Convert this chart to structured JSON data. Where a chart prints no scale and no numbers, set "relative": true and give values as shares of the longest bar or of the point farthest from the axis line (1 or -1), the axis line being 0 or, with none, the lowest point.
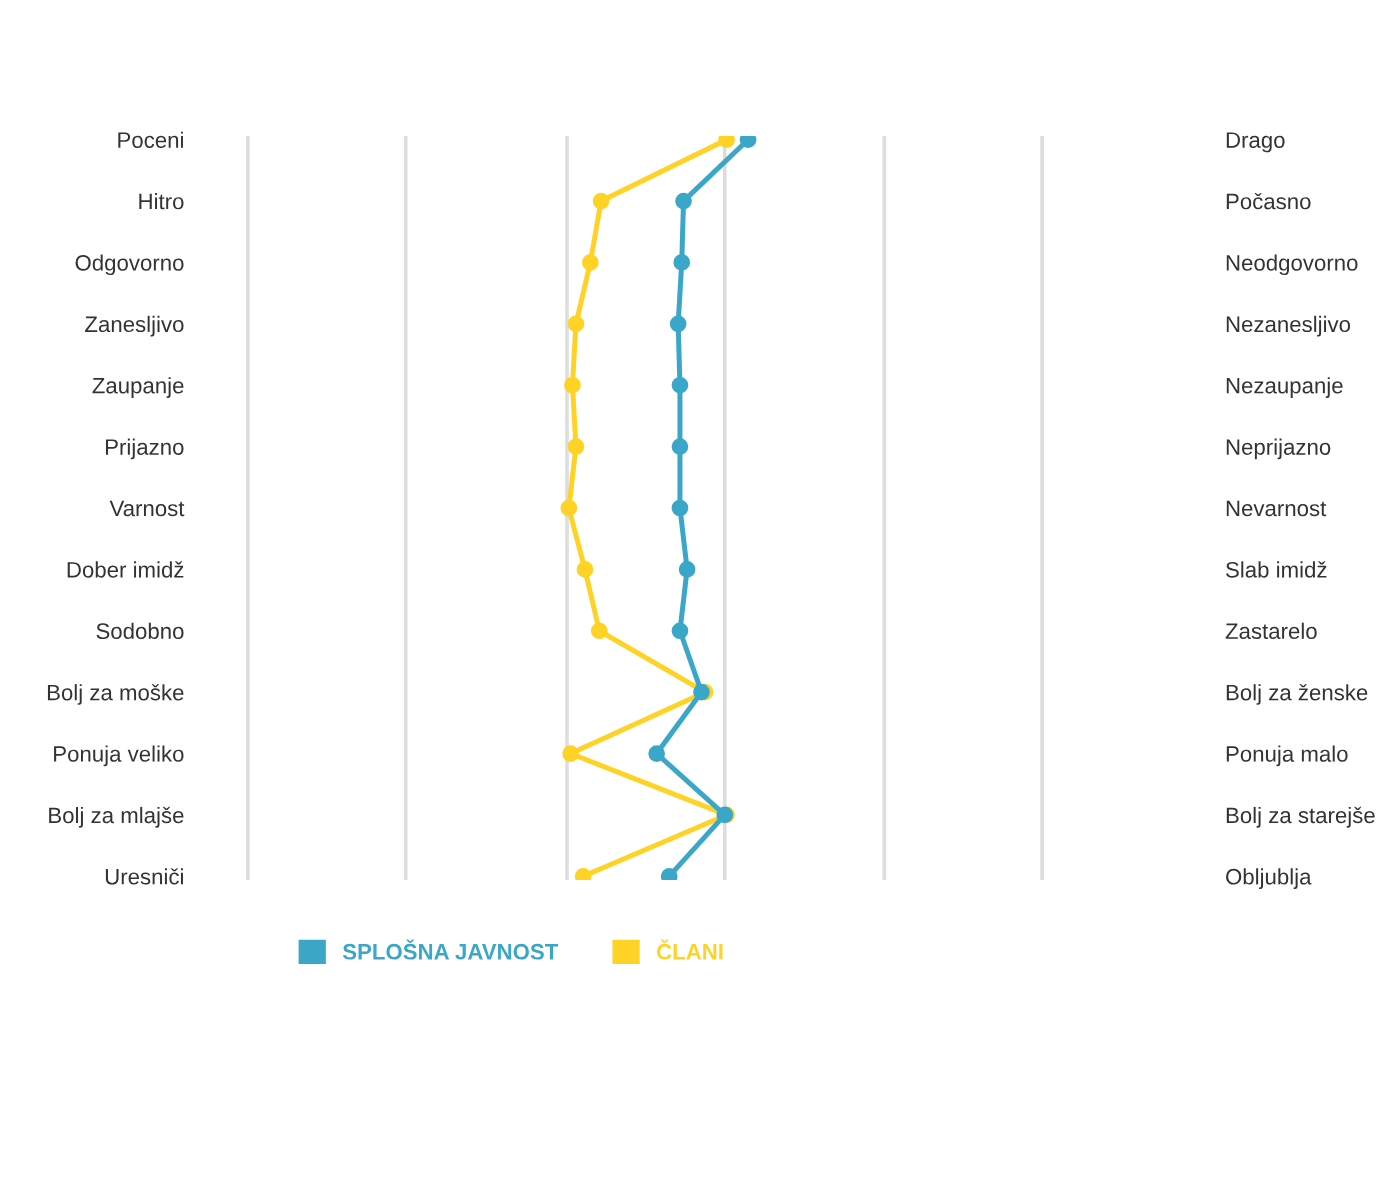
{
  "chart_data": {
    "type": "line",
    "relative": true,
    "orientation": "horizontal",
    "ref_lines": [
      {
        "axis": "x",
        "value": -1.79,
        "color": "#dddddd"
      },
      {
        "axis": "x",
        "value": -0.91,
        "color": "#dddddd"
      },
      {
        "axis": "x",
        "value": -0.01,
        "color": "#dddddd"
      },
      {
        "axis": "x",
        "value": 0.87,
        "color": "#dddddd"
      },
      {
        "axis": "x",
        "value": 1.76,
        "color": "#dddddd"
      },
      {
        "axis": "x",
        "value": 2.64,
        "color": "#dddddd"
      }
    ],
    "legend": "bottom",
    "marker": "circle",
    "line_style": "solid",
    "categories": [
      "Poceni",
      "Hitro",
      "Odgovorno",
      "Zanesljivo",
      "Zaupanje",
      "Prijazno",
      "Varnost",
      "Dober imidž",
      "Sodobno",
      "Bolj za moške",
      "Ponuja veliko",
      "Bolj za mlajše",
      "Uresniči"
    ],
    "y2_categories": [
      "Drago",
      "Počasno",
      "Neodgovorno",
      "Nezanesljivo",
      "Nezaupanje",
      "Neprijazno",
      "Nevarnost",
      "Slab imidž",
      "Zastarelo",
      "Bolj za ženske",
      "Ponuja malo",
      "Bolj za starejše",
      "Obljublja"
    ],
    "series": [
      {
        "name": "SPLOŠNA JAVNOST",
        "color": "#3aa7c9",
        "values": [
          1.0,
          0.64,
          0.63,
          0.61,
          0.62,
          0.62,
          0.62,
          0.66,
          0.62,
          0.74,
          0.49,
          0.87,
          0.56
        ]
      },
      {
        "name": "ČLANI",
        "color": "#fed325",
        "values": [
          0.88,
          0.18,
          0.12,
          0.04,
          0.02,
          0.04,
          0.0,
          0.09,
          0.17,
          0.76,
          0.01,
          0.88,
          0.08
        ]
      }
    ]
  }
}
